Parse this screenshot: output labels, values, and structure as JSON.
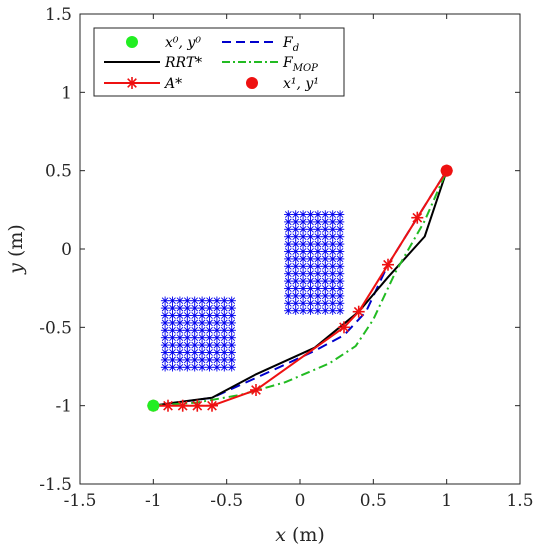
{
  "chart_data": {
    "type": "line",
    "xlabel_sym": "x",
    "xlabel_unit": " (m)",
    "ylabel_sym": "y",
    "ylabel_unit": " (m)",
    "xlim": [
      -1.5,
      1.5
    ],
    "ylim": [
      -1.5,
      1.5
    ],
    "xticks": [
      -1.5,
      -1,
      -0.5,
      0,
      0.5,
      1,
      1.5
    ],
    "yticks": [
      -1.5,
      -1,
      -0.5,
      0,
      0.5,
      1,
      1.5
    ],
    "xtick_labels": [
      "-1.5",
      "-1",
      "-0.5",
      "0",
      "0.5",
      "1",
      "1.5"
    ],
    "ytick_labels": [
      "-1.5",
      "-1",
      "-0.5",
      "0",
      "0.5",
      "1",
      "1.5"
    ],
    "grid": false,
    "legend_position": "top-left",
    "legend": {
      "start": "x⁰, y⁰",
      "fd": "F",
      "fd_sub": "d",
      "rrt": "RRT*",
      "fmop": "F",
      "fmop_sub": "MOP",
      "astar": "A*",
      "goal": "x¹, y¹"
    },
    "start": {
      "x": -1,
      "y": -1
    },
    "goal": {
      "x": 1,
      "y": 0.5
    },
    "obstacles": [
      {
        "x": [
          -0.92,
          -0.46
        ],
        "y": [
          -0.8,
          -0.33
        ],
        "color": "#0000ee"
      },
      {
        "x": [
          -0.08,
          0.28
        ],
        "y": [
          -0.43,
          0.22
        ],
        "color": "#0000ee"
      }
    ],
    "series": [
      {
        "name": "F_d",
        "color": "#0000cc",
        "style": "dashed",
        "x": [
          -1,
          -0.6,
          -0.2,
          0.1,
          0.3,
          0.45,
          0.6,
          0.8,
          1
        ],
        "y": [
          -1,
          -0.95,
          -0.78,
          -0.65,
          -0.55,
          -0.4,
          -0.1,
          0.2,
          0.5
        ]
      },
      {
        "name": "RRT*",
        "color": "#000000",
        "style": "solid",
        "x": [
          -1,
          -0.85,
          -0.6,
          -0.3,
          0.1,
          0.4,
          0.6,
          0.85,
          1
        ],
        "y": [
          -1,
          -0.98,
          -0.95,
          -0.8,
          -0.63,
          -0.4,
          -0.18,
          0.08,
          0.5
        ]
      },
      {
        "name": "F_MOP",
        "color": "#22bb22",
        "style": "dashdot",
        "x": [
          -1,
          -0.7,
          -0.4,
          -0.1,
          0.2,
          0.38,
          0.5,
          0.65,
          0.85,
          1
        ],
        "y": [
          -1,
          -0.98,
          -0.93,
          -0.85,
          -0.73,
          -0.62,
          -0.45,
          -0.15,
          0.18,
          0.5
        ]
      },
      {
        "name": "A*",
        "color": "#ee1111",
        "style": "solid",
        "marker": "asterisk",
        "x": [
          -1,
          -0.9,
          -0.8,
          -0.7,
          -0.6,
          -0.3,
          0.3,
          0.4,
          0.6,
          0.8,
          1
        ],
        "y": [
          -1,
          -1,
          -1,
          -1,
          -1,
          -0.9,
          -0.5,
          -0.4,
          -0.1,
          0.2,
          0.5
        ]
      }
    ]
  }
}
